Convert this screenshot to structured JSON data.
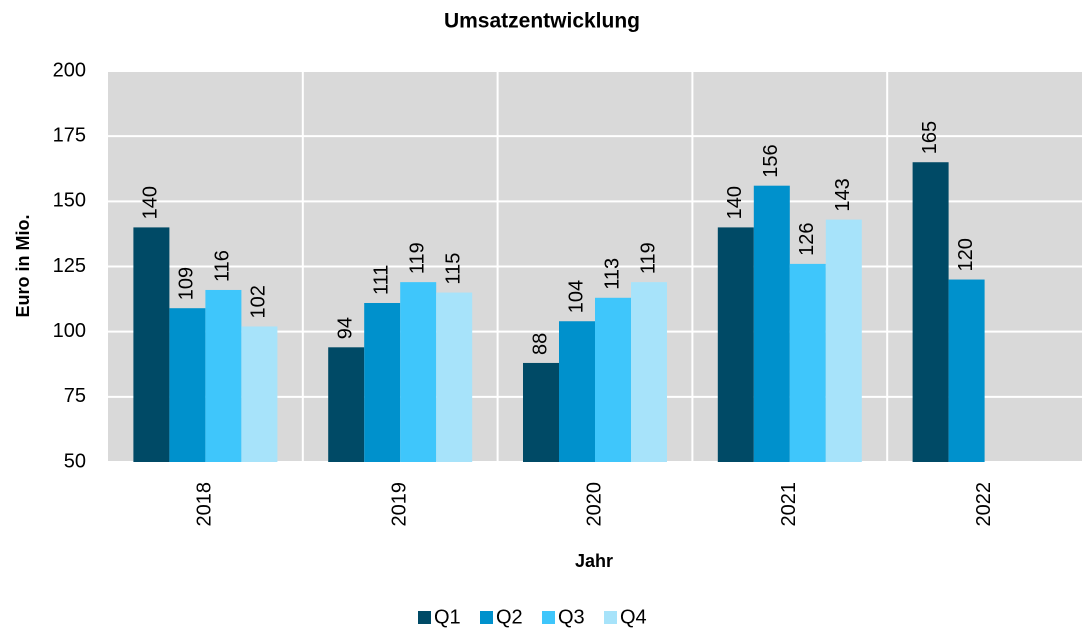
{
  "chart_data": {
    "type": "bar",
    "title": "Umsatzentwicklung",
    "x_label": "Jahr",
    "y_label": "Euro in Mio.",
    "categories": [
      "2018",
      "2019",
      "2020",
      "2021",
      "2022"
    ],
    "series": [
      {
        "name": "Q1",
        "color": "#004a66",
        "values": [
          140,
          94,
          88,
          140,
          165
        ]
      },
      {
        "name": "Q2",
        "color": "#0091cc",
        "values": [
          109,
          111,
          104,
          156,
          120
        ]
      },
      {
        "name": "Q3",
        "color": "#3fc6fb",
        "values": [
          116,
          119,
          113,
          126,
          null
        ]
      },
      {
        "name": "Q4",
        "color": "#a7e3fa",
        "values": [
          102,
          115,
          119,
          143,
          null
        ]
      }
    ],
    "ylim": [
      50,
      200
    ],
    "yticks": [
      50,
      75,
      100,
      125,
      150,
      175,
      200
    ],
    "grid": true,
    "legend": "bottom"
  }
}
